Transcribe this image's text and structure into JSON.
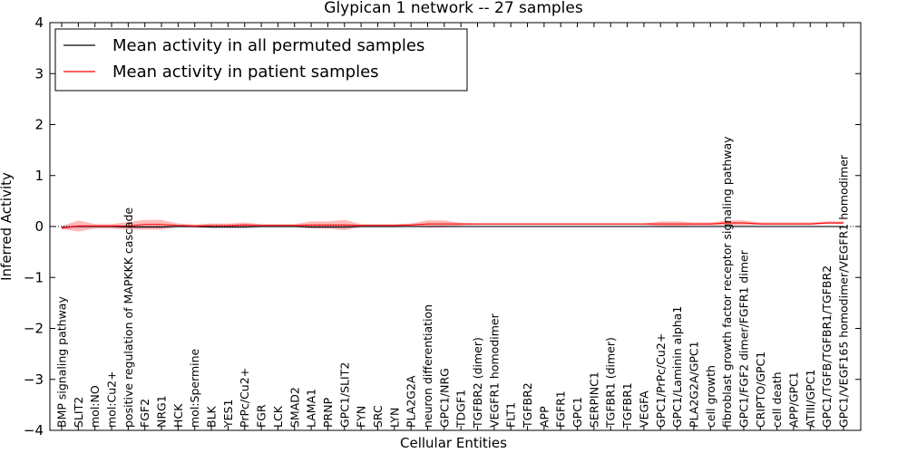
{
  "chart_data": {
    "type": "line",
    "title": "Glypican 1 network -- 27 samples",
    "xlabel": "Cellular Entities",
    "ylabel": "Inferred Activity",
    "ylim": [
      -4,
      4
    ],
    "yticks": [
      -4,
      -3,
      -2,
      -1,
      0,
      1,
      2,
      3,
      4
    ],
    "ytick_labels": [
      "−4",
      "−3",
      "−2",
      "−1",
      "0",
      "1",
      "2",
      "3",
      "4"
    ],
    "grid": false,
    "legend_position": "top-left",
    "reference_line": 0,
    "categories": [
      "BMP signaling pathway",
      "SLIT2",
      "mol:NO",
      "mol:Cu2+",
      "positive regulation of MAPKKK cascade",
      "FGF2",
      "NRG1",
      "HCK",
      "mol:Spermine",
      "BLK",
      "YES1",
      "PrPc/Cu2+",
      "FGR",
      "LCK",
      "SMAD2",
      "LAMA1",
      "PRNP",
      "GPC1/SLIT2",
      "FYN",
      "SRC",
      "LYN",
      "PLA2G2A",
      "neuron differentiation",
      "GPC1/NRG",
      "TDGF1",
      "TGFBR2 (dimer)",
      "VEGFR1 homodimer",
      "FLT1",
      "TGFBR2",
      "APP",
      "FGFR1",
      "GPC1",
      "SERPINC1",
      "TGFBR1 (dimer)",
      "TGFBR1",
      "VEGFA",
      "GPC1/PrPc/Cu2+",
      "GPC1/Laminin alpha1",
      "PLA2G2A/GPC1",
      "cell growth",
      "fibroblast growth factor receptor signaling pathway",
      "GPC1/FGF2 dimer/FGFR1 dimer",
      "CRIPTO/GPC1",
      "cell death",
      "APP/GPC1",
      "ATIII/GPC1",
      "GPC1/TGFB/TGFBR1/TGFBR2",
      "GPC1/VEGF165 homodimer/VEGFR1 homodimer"
    ],
    "series": [
      {
        "name": "Mean activity in all permuted samples",
        "color": "#000000",
        "values": [
          -0.02,
          0.0,
          0.0,
          0.0,
          -0.01,
          -0.01,
          -0.01,
          0.0,
          0.0,
          -0.01,
          -0.01,
          -0.01,
          0.0,
          0.0,
          0.0,
          -0.01,
          -0.01,
          -0.01,
          0.0,
          0.0,
          0.0,
          0.0,
          0.0,
          0.0,
          0.0,
          0.0,
          0.0,
          0.0,
          0.0,
          0.0,
          0.0,
          0.0,
          0.0,
          0.0,
          0.0,
          0.0,
          0.0,
          0.0,
          0.0,
          0.0,
          0.0,
          0.0,
          0.0,
          0.0,
          0.0,
          0.0,
          0.0,
          0.0
        ],
        "lower": [
          -0.06,
          -0.04,
          -0.03,
          -0.03,
          -0.04,
          -0.04,
          -0.04,
          -0.03,
          -0.03,
          -0.04,
          -0.04,
          -0.04,
          -0.03,
          -0.03,
          -0.03,
          -0.04,
          -0.04,
          -0.04,
          -0.03,
          -0.03,
          -0.03,
          -0.02,
          -0.02,
          -0.02,
          -0.02,
          -0.02,
          -0.02,
          -0.02,
          -0.02,
          -0.02,
          -0.02,
          -0.02,
          -0.02,
          -0.02,
          -0.02,
          -0.02,
          -0.02,
          -0.02,
          -0.02,
          -0.02,
          -0.02,
          -0.02,
          -0.02,
          -0.02,
          -0.02,
          -0.02,
          -0.02,
          -0.02
        ],
        "upper": [
          0.02,
          0.04,
          0.03,
          0.03,
          0.02,
          0.02,
          0.02,
          0.03,
          0.03,
          0.02,
          0.02,
          0.02,
          0.03,
          0.03,
          0.03,
          0.02,
          0.02,
          0.02,
          0.03,
          0.03,
          0.03,
          0.02,
          0.02,
          0.02,
          0.02,
          0.02,
          0.02,
          0.02,
          0.02,
          0.02,
          0.02,
          0.02,
          0.02,
          0.02,
          0.02,
          0.02,
          0.02,
          0.02,
          0.02,
          0.02,
          0.02,
          0.02,
          0.02,
          0.02,
          0.02,
          0.02,
          0.02,
          0.02
        ]
      },
      {
        "name": "Mean activity in patient samples",
        "color": "#ff0000",
        "values": [
          -0.03,
          0.01,
          0.01,
          0.01,
          0.01,
          0.04,
          0.04,
          0.02,
          0.01,
          0.02,
          0.02,
          0.03,
          0.02,
          0.02,
          0.02,
          0.03,
          0.03,
          0.03,
          0.02,
          0.02,
          0.02,
          0.03,
          0.05,
          0.05,
          0.05,
          0.05,
          0.05,
          0.05,
          0.05,
          0.05,
          0.05,
          0.05,
          0.05,
          0.05,
          0.05,
          0.05,
          0.05,
          0.05,
          0.05,
          0.05,
          0.07,
          0.07,
          0.05,
          0.05,
          0.05,
          0.05,
          0.07,
          0.07
        ],
        "lower": [
          -0.05,
          -0.1,
          -0.04,
          -0.04,
          -0.06,
          -0.06,
          -0.06,
          -0.01,
          -0.02,
          -0.02,
          -0.02,
          -0.02,
          -0.01,
          -0.01,
          -0.01,
          -0.04,
          -0.04,
          -0.07,
          -0.01,
          -0.01,
          -0.01,
          0.0,
          -0.02,
          -0.02,
          0.02,
          0.03,
          0.03,
          0.03,
          0.03,
          0.03,
          0.03,
          0.03,
          0.03,
          0.03,
          0.03,
          0.03,
          0.01,
          0.01,
          0.02,
          0.02,
          0.02,
          0.02,
          0.03,
          0.03,
          0.03,
          0.03,
          0.05,
          0.05
        ],
        "upper": [
          0.01,
          0.12,
          0.05,
          0.05,
          0.09,
          0.13,
          0.13,
          0.06,
          0.04,
          0.06,
          0.06,
          0.08,
          0.05,
          0.05,
          0.05,
          0.1,
          0.1,
          0.13,
          0.05,
          0.05,
          0.05,
          0.06,
          0.12,
          0.12,
          0.07,
          0.06,
          0.06,
          0.06,
          0.06,
          0.06,
          0.06,
          0.06,
          0.06,
          0.06,
          0.06,
          0.06,
          0.1,
          0.1,
          0.08,
          0.08,
          0.12,
          0.12,
          0.08,
          0.08,
          0.08,
          0.08,
          0.1,
          0.1
        ]
      }
    ]
  }
}
